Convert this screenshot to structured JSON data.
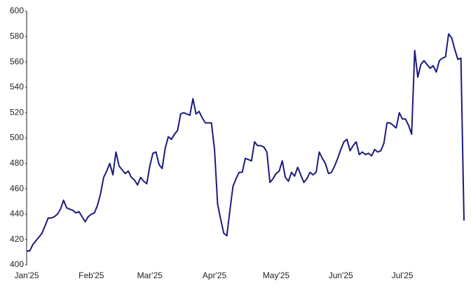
{
  "chart_data": {
    "type": "line",
    "categories": [
      "Jan'25",
      null,
      null,
      null,
      null,
      null,
      null,
      null,
      null,
      null,
      null,
      null,
      null,
      null,
      null,
      null,
      null,
      null,
      null,
      null,
      null,
      "Feb'25",
      null,
      null,
      null,
      null,
      null,
      null,
      null,
      null,
      null,
      null,
      null,
      null,
      null,
      null,
      null,
      null,
      null,
      null,
      "Mar'25",
      null,
      null,
      null,
      null,
      null,
      null,
      null,
      null,
      null,
      null,
      null,
      null,
      null,
      null,
      null,
      null,
      null,
      null,
      null,
      null,
      "Apr'25",
      null,
      null,
      null,
      null,
      null,
      null,
      null,
      null,
      null,
      null,
      null,
      null,
      null,
      null,
      null,
      null,
      null,
      null,
      null,
      "May'25",
      null,
      null,
      null,
      null,
      null,
      null,
      null,
      null,
      null,
      null,
      null,
      null,
      null,
      null,
      null,
      null,
      null,
      null,
      null,
      null,
      "Jun'25",
      null,
      null,
      null,
      null,
      null,
      null,
      null,
      null,
      null,
      null,
      null,
      null,
      null,
      null,
      null,
      null,
      null,
      null,
      null,
      "Jul'25",
      null,
      null,
      null,
      null,
      null,
      null,
      null,
      null,
      null,
      null,
      null,
      null,
      null,
      null,
      null,
      null,
      null,
      null,
      null,
      null
    ],
    "values": [
      411,
      411,
      416,
      419,
      422,
      425,
      431,
      437,
      437,
      438,
      440,
      444,
      451,
      445,
      444,
      443,
      441,
      442,
      438,
      434,
      438,
      440,
      441,
      447,
      456,
      469,
      474,
      480,
      471,
      489,
      478,
      475,
      472,
      474,
      469,
      467,
      463,
      469,
      466,
      464,
      478,
      488,
      489,
      479,
      476,
      492,
      501,
      499,
      503,
      506,
      519,
      520,
      519,
      518,
      531,
      519,
      521,
      516,
      512,
      512,
      512,
      491,
      448,
      436,
      425,
      423,
      443,
      462,
      468,
      473,
      473,
      484,
      483,
      482,
      497,
      494,
      494,
      493,
      489,
      465,
      468,
      472,
      474,
      482,
      469,
      466,
      473,
      470,
      477,
      471,
      465,
      468,
      473,
      471,
      473,
      489,
      484,
      480,
      472,
      473,
      478,
      484,
      491,
      497,
      499,
      490,
      494,
      497,
      487,
      489,
      487,
      488,
      486,
      491,
      489,
      490,
      496,
      512,
      512,
      510,
      508,
      520,
      515,
      515,
      510,
      503,
      569,
      548,
      558,
      561,
      558,
      555,
      557,
      552,
      561,
      563,
      564,
      582,
      579,
      570,
      562,
      563,
      435
    ],
    "color": "#1a1a7e",
    "ylim": [
      400,
      600
    ],
    "yticks": [
      400,
      420,
      440,
      460,
      480,
      500,
      520,
      540,
      560,
      580,
      600
    ]
  }
}
